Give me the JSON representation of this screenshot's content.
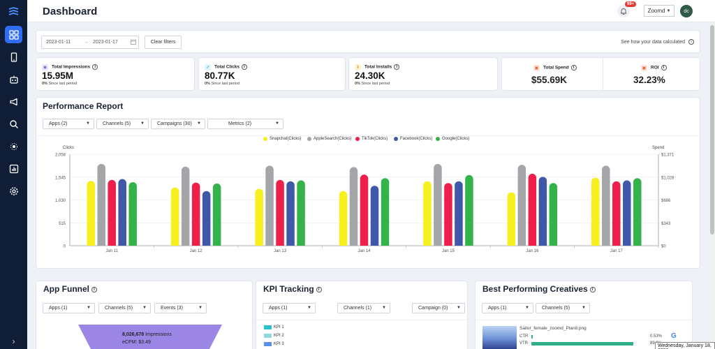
{
  "header": {
    "title": "Dashboard",
    "notifications_badge": "99+",
    "org_select": "Zoomd",
    "avatar_initials": "dc"
  },
  "sidebar": {
    "items": [
      {
        "icon": "grid-icon",
        "active": true
      },
      {
        "icon": "mobile-icon",
        "active": false
      },
      {
        "icon": "robot-icon",
        "active": false
      },
      {
        "icon": "megaphone-icon",
        "active": false
      },
      {
        "icon": "search-icon",
        "active": false
      },
      {
        "icon": "target-icon",
        "active": false
      },
      {
        "icon": "bar-chart-icon",
        "active": false
      },
      {
        "icon": "gear-icon",
        "active": false
      }
    ],
    "expand_glyph": "›"
  },
  "filters": {
    "date_from": "2023-01-11",
    "date_separator": "→",
    "date_to": "2023-01-17",
    "clear_label": "Clear filters",
    "data_link": "See how your data calculated"
  },
  "stats": [
    {
      "label": "Total Impressions",
      "value": "15.95M",
      "change": "0%",
      "since": "Since last period",
      "color": "#7b5cd6",
      "bg": "#ece6fb"
    },
    {
      "label": "Total Clicks",
      "value": "80.77K",
      "change": "0%",
      "since": "Since last period",
      "color": "#2aa7c9",
      "bg": "#e1f4fa"
    },
    {
      "label": "Total Installs",
      "value": "24.30K",
      "change": "0%",
      "since": "Since last period",
      "color": "#e3a21a",
      "bg": "#fcf1da"
    }
  ],
  "spend": {
    "label": "Total Spend",
    "value": "$55.69K",
    "color": "#e36a3a",
    "bg": "#fde7dd"
  },
  "roi": {
    "label": "ROI",
    "value": "32.23%",
    "color": "#e36a3a",
    "bg": "#fde7dd"
  },
  "performance": {
    "title": "Performance Report",
    "dropdowns": {
      "apps": "Apps (2)",
      "channels": "Channels (5)",
      "campaigns": "Campaigns (30)",
      "metrics": "Metrics (2)"
    }
  },
  "chart_data": {
    "type": "bar",
    "ylabel": "Clicks",
    "ylabel_right": "Spend",
    "categories": [
      "Jan 11",
      "Jan 12",
      "Jan 13",
      "Jan 14",
      "Jan 15",
      "Jan 16",
      "Jan 17"
    ],
    "ylim": [
      0,
      2058
    ],
    "y_ticks": [
      "0",
      "515",
      "1,030",
      "1,545",
      "2,058"
    ],
    "y2_ticks": [
      "$0",
      "$343",
      "$686",
      "$1,028",
      "$1,371"
    ],
    "legend_position": "top",
    "grid": true,
    "series": [
      {
        "name": "Snapchat(Clicks)",
        "color": "#f7f01e",
        "values": [
          1460,
          1310,
          1280,
          1230,
          1450,
          1200,
          1530
        ]
      },
      {
        "name": "AppleSearch(Clicks)",
        "color": "#a3a5a8",
        "values": [
          1840,
          1780,
          1800,
          1770,
          1840,
          1820,
          1800
        ]
      },
      {
        "name": "TikTok(Clicks)",
        "color": "#ee1f4b",
        "values": [
          1480,
          1420,
          1480,
          1600,
          1410,
          1620,
          1450
        ]
      },
      {
        "name": "Facebook(Clicks)",
        "color": "#3f59a8",
        "values": [
          1500,
          1230,
          1450,
          1350,
          1450,
          1550,
          1470
        ]
      },
      {
        "name": "Google(Clicks)",
        "color": "#34b34a",
        "values": [
          1430,
          1400,
          1470,
          1520,
          1590,
          1410,
          1520
        ]
      }
    ]
  },
  "funnel": {
    "title": "App Funnel",
    "dropdowns": {
      "apps": "Apps (1)",
      "channels": "Channels (5)",
      "events": "Events (3)"
    },
    "impressions_value": "8,026,678",
    "impressions_label": "Impressions",
    "ecpm": "eCPM: $3.49"
  },
  "kpi": {
    "title": "KPI Tracking",
    "dropdowns": {
      "apps": "Apps (1)",
      "channels": "Channels (1)",
      "campaign": "Campaign (0)"
    },
    "items": [
      {
        "label": "KPI 1",
        "color": "#2bbfc9"
      },
      {
        "label": "KPI 2",
        "color": "#8fd8e0"
      },
      {
        "label": "KPI 3",
        "color": "#5b8fe8"
      }
    ]
  },
  "creatives": {
    "title": "Best Performing Creatives",
    "dropdowns": {
      "apps": "Apps (1)",
      "channels": "Channels (5)"
    },
    "item": {
      "name": "Sailor_female_zoomd_Plan8.png",
      "ctr_label": "CTR",
      "ctr_value": "0.53%",
      "vtr_label": "VTR",
      "vtr_value": "89.9%"
    }
  },
  "tooltip": "Wednesday, January 18, 2023"
}
